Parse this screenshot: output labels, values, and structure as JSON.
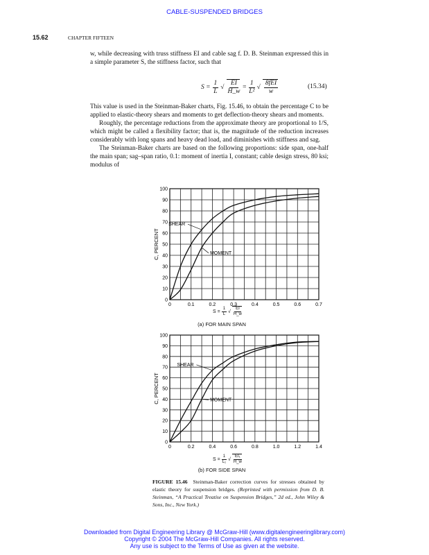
{
  "header": {
    "running_head": "CABLE-SUSPENDED BRIDGES",
    "page_number": "15.62",
    "chapter": "CHAPTER FIFTEEN"
  },
  "body": {
    "p1": "w, while decreasing with truss stiffness EI and cable sag f. D. B. Steinman expressed this in a simple parameter S, the stiffness factor, such that",
    "equation": {
      "lhs": "S =",
      "f1n": "1",
      "f1d": "L",
      "r1n": "EI",
      "r1d": "H_w",
      "eq": "=",
      "f2n": "1",
      "f2d": "L²",
      "r2n": "8fEI",
      "r2d": "w",
      "number": "(15.34)"
    },
    "p2": "This value is used in the Steinman-Baker charts, Fig. 15.46, to obtain the percentage C to be applied to elastic-theory shears and moments to get deflection-theory shears and moments.",
    "p3": "Roughly, the percentage reductions from the approximate theory are proportional to 1/S, which might be called a flexibility factor; that is, the magnitude of the reduction increases considerably with long spans and heavy dead load, and diminishes with stiffness and sag.",
    "p4": "The Steinman-Baker charts are based on the following proportions: side span, one-half the main span; sag–span ratio, 0.1: moment of inertia I, constant; cable design stress, 80 ksi; modulus of"
  },
  "chart_data": [
    {
      "type": "line",
      "subtitle": "(a) FOR MAIN SPAN",
      "ylabel": "C, PERCENT",
      "xlabel": {
        "lhs": "S =",
        "n": "1",
        "d": "L",
        "rn": "EI",
        "rd": "H_w"
      },
      "xlim": [
        0,
        0.7
      ],
      "ylim": [
        0,
        100
      ],
      "grid": true,
      "xticks": [
        "0",
        "0.1",
        "0.2",
        "0.3",
        "0.4",
        "0.5",
        "0.6",
        "0.7"
      ],
      "yticks": [
        "0",
        "10",
        "20",
        "30",
        "40",
        "50",
        "60",
        "70",
        "80",
        "90",
        "100"
      ],
      "x": [
        0,
        0.05,
        0.1,
        0.15,
        0.2,
        0.25,
        0.3,
        0.4,
        0.5,
        0.6,
        0.7
      ],
      "series": [
        {
          "name": "SHEAR",
          "values": [
            0,
            30,
            50,
            63,
            73,
            80,
            85,
            90,
            93,
            94.5,
            95.5
          ]
        },
        {
          "name": "MOMENT",
          "values": [
            0,
            9,
            27,
            47,
            60,
            70,
            78,
            85,
            89,
            91.5,
            93
          ]
        }
      ]
    },
    {
      "type": "line",
      "subtitle": "(b) FOR SIDE SPAN",
      "ylabel": "C, PERCENT",
      "xlabel": {
        "lhs": "S =",
        "n": "1",
        "d": "L₁",
        "rn": "EI₁",
        "rd": "H_w"
      },
      "xlim": [
        0,
        1.4
      ],
      "ylim": [
        0,
        100
      ],
      "grid": true,
      "xticks": [
        "0",
        "0.2",
        "0.4",
        "0.6",
        "0.8",
        "1.0",
        "1.2",
        "1.4"
      ],
      "yticks": [
        "0",
        "10",
        "20",
        "30",
        "40",
        "50",
        "60",
        "70",
        "80",
        "90",
        "100"
      ],
      "x": [
        0,
        0.1,
        0.2,
        0.3,
        0.4,
        0.5,
        0.6,
        0.8,
        1.0,
        1.2,
        1.4
      ],
      "series": [
        {
          "name": "SHEAR",
          "values": [
            0,
            20,
            38,
            55,
            67,
            74,
            80,
            87,
            91,
            93.5,
            94
          ]
        },
        {
          "name": "MOMENT",
          "values": [
            0,
            9,
            20,
            40,
            58,
            68,
            76,
            85,
            90,
            93,
            94
          ]
        }
      ]
    }
  ],
  "caption": {
    "label": "FIGURE 15.46",
    "text": "Steinman-Baker correction curves for stresses obtained by elastic theory for suspension bridges.",
    "credit": "(Reprinted with permission from D. B. Steinman, “A Practical Treatise on Suspension Bridges,” 2d ed., John Wiley & Sons, Inc., New York.)"
  },
  "footer": {
    "line1": "Downloaded from Digital Engineering Library @ McGraw-Hill (www.digitalengineeringlibrary.com)",
    "line2": "Copyright © 2004 The McGraw-Hill Companies. All rights reserved.",
    "line3": "Any use is subject to the Terms of Use as given at the website."
  }
}
